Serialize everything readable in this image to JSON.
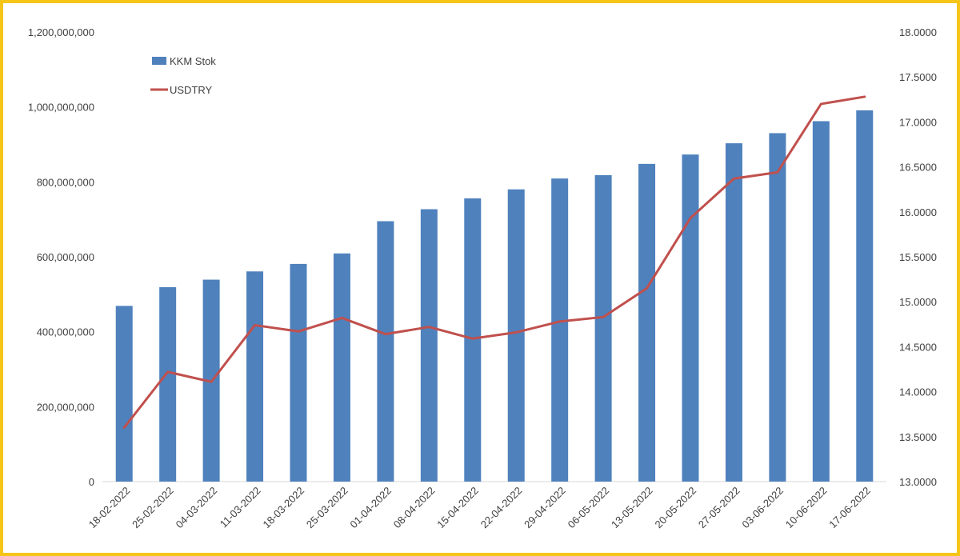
{
  "chart_data": {
    "type": "bar",
    "categories": [
      "18-02-2022",
      "25-02-2022",
      "04-03-2022",
      "11-03-2022",
      "18-03-2022",
      "25-03-2022",
      "01-04-2022",
      "08-04-2022",
      "15-04-2022",
      "22-04-2022",
      "29-04-2022",
      "06-05-2022",
      "13-05-2022",
      "20-05-2022",
      "27-05-2022",
      "03-06-2022",
      "10-06-2022",
      "17-06-2022"
    ],
    "series": [
      {
        "name": "KKM Stok",
        "type": "bar",
        "axis": "left",
        "color": "#4f81bd",
        "values": [
          469000000,
          519000000,
          539000000,
          561000000,
          581000000,
          609000000,
          695000000,
          727000000,
          756000000,
          780000000,
          809000000,
          818000000,
          848000000,
          873000000,
          903000000,
          930000000,
          962000000,
          991000000
        ]
      },
      {
        "name": "USDTRY",
        "type": "line",
        "axis": "right",
        "color": "#c0504d",
        "values": [
          13.6,
          14.22,
          14.11,
          14.74,
          14.67,
          14.82,
          14.64,
          14.72,
          14.59,
          14.66,
          14.78,
          14.83,
          15.15,
          15.93,
          16.37,
          16.44,
          17.2,
          17.28
        ]
      }
    ],
    "left_axis": {
      "ylim": [
        0,
        1200000000
      ],
      "ticks": [
        "0",
        "200,000,000",
        "400,000,000",
        "600,000,000",
        "800,000,000",
        "1,000,000,000",
        "1,200,000,000"
      ]
    },
    "right_axis": {
      "ylim": [
        13.0,
        18.0
      ],
      "ticks": [
        "13.0000",
        "13.5000",
        "14.0000",
        "14.5000",
        "15.0000",
        "15.5000",
        "16.0000",
        "16.5000",
        "17.0000",
        "17.5000",
        "18.0000"
      ]
    },
    "title": "",
    "xlabel": "",
    "ylabel": "",
    "legend": {
      "placement": "top-left",
      "entries": [
        "KKM Stok",
        "USDTRY"
      ]
    },
    "grid": false,
    "frame_color": "#f5c518"
  }
}
